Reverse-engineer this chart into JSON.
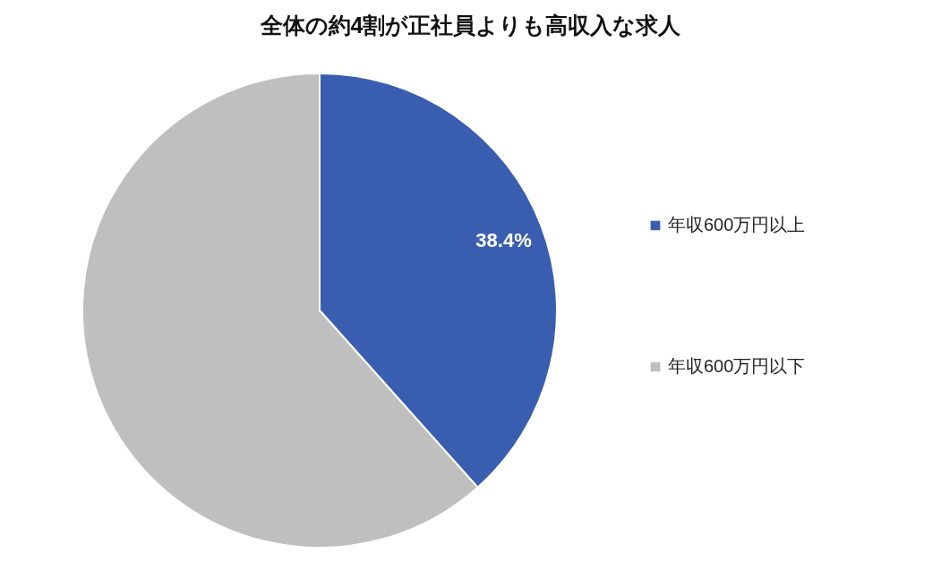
{
  "chart_data": {
    "type": "pie",
    "title": "全体の約4割が正社員よりも高収入な求人",
    "categories": [
      "年収600万円以上",
      "年収600万円以下"
    ],
    "values": [
      38.4,
      61.6
    ],
    "colors": [
      "#3a5eaf",
      "#bfbfbf"
    ],
    "value_labels": [
      "38.4%",
      null
    ],
    "legend": "right"
  }
}
